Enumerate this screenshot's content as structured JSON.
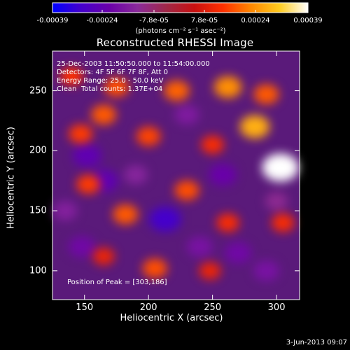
{
  "colorbar": {
    "tick_labels": [
      "-0.00039",
      "-0.00024",
      "-7.8e-05",
      "7.8e-05",
      "0.00024",
      "0.00039"
    ],
    "units_label": "(photons cm⁻² s⁻¹ asec⁻²)",
    "colors": [
      "#0000ff",
      "#4400cc",
      "#6a00a8",
      "#8a2a9a",
      "#a02848",
      "#c81010",
      "#ff3000",
      "#ff8800",
      "#ffcc20",
      "#ffffff"
    ]
  },
  "annotations": {
    "time_range": "25-Dec-2003 11:50:50.000 to 11:54:00.000",
    "detectors": "Detectors: 4F 5F 6F 7F 8F, Att 0",
    "energy_range": "Energy Range: 25.0 - 50.0 keV",
    "algorithm": "Clean",
    "total_counts": "Total counts: 1.37E+04",
    "peak": "Position of Peak = [303,186]"
  },
  "footer": {
    "timestamp": "3-Jun-2013 09:07"
  },
  "chart_data": {
    "type": "heatmap",
    "title": "Reconstructed RHESSI Image",
    "xlabel": "Heliocentric X (arcsec)",
    "ylabel": "Heliocentric Y (arcsec)",
    "xlim": [
      125,
      318
    ],
    "ylim": [
      76,
      283
    ],
    "xticks": [
      150,
      200,
      250,
      300
    ],
    "yticks": [
      100,
      150,
      200,
      250
    ],
    "clim": [
      -0.00039,
      0.00039
    ],
    "peak_position": [
      303,
      186
    ],
    "sources": [
      {
        "x": 303,
        "y": 186,
        "value": 0.00039
      },
      {
        "x": 283,
        "y": 220,
        "value": 0.00026
      },
      {
        "x": 262,
        "y": 253,
        "value": 0.00022
      },
      {
        "x": 222,
        "y": 250,
        "value": 0.00018
      },
      {
        "x": 175,
        "y": 253,
        "value": 0.00016
      },
      {
        "x": 147,
        "y": 214,
        "value": 0.00014
      },
      {
        "x": 165,
        "y": 230,
        "value": 0.00017
      },
      {
        "x": 230,
        "y": 167,
        "value": 0.00016
      },
      {
        "x": 182,
        "y": 147,
        "value": 0.00017
      },
      {
        "x": 153,
        "y": 172,
        "value": 0.00014
      },
      {
        "x": 200,
        "y": 212,
        "value": 0.00015
      },
      {
        "x": 250,
        "y": 205,
        "value": 0.00012
      },
      {
        "x": 262,
        "y": 140,
        "value": 0.00012
      },
      {
        "x": 205,
        "y": 102,
        "value": 0.00016
      },
      {
        "x": 305,
        "y": 140,
        "value": 0.00012
      },
      {
        "x": 248,
        "y": 100,
        "value": 0.0001
      },
      {
        "x": 165,
        "y": 112,
        "value": 0.0001
      },
      {
        "x": 292,
        "y": 247,
        "value": 0.00017
      },
      {
        "x": 140,
        "y": 262,
        "value": 0.00013
      },
      {
        "x": 165,
        "y": 175,
        "value": -0.00024
      },
      {
        "x": 152,
        "y": 196,
        "value": -0.00024
      },
      {
        "x": 213,
        "y": 143,
        "value": -0.0003
      },
      {
        "x": 258,
        "y": 180,
        "value": -0.00022
      },
      {
        "x": 240,
        "y": 120,
        "value": -0.00018
      },
      {
        "x": 148,
        "y": 120,
        "value": -0.0002
      },
      {
        "x": 270,
        "y": 115,
        "value": -0.0002
      },
      {
        "x": 292,
        "y": 100,
        "value": -0.00018
      },
      {
        "x": 190,
        "y": 180,
        "value": -0.00014
      },
      {
        "x": 135,
        "y": 150,
        "value": -0.00015
      },
      {
        "x": 230,
        "y": 230,
        "value": -0.00016
      },
      {
        "x": 300,
        "y": 158,
        "value": -0.00012
      }
    ]
  }
}
